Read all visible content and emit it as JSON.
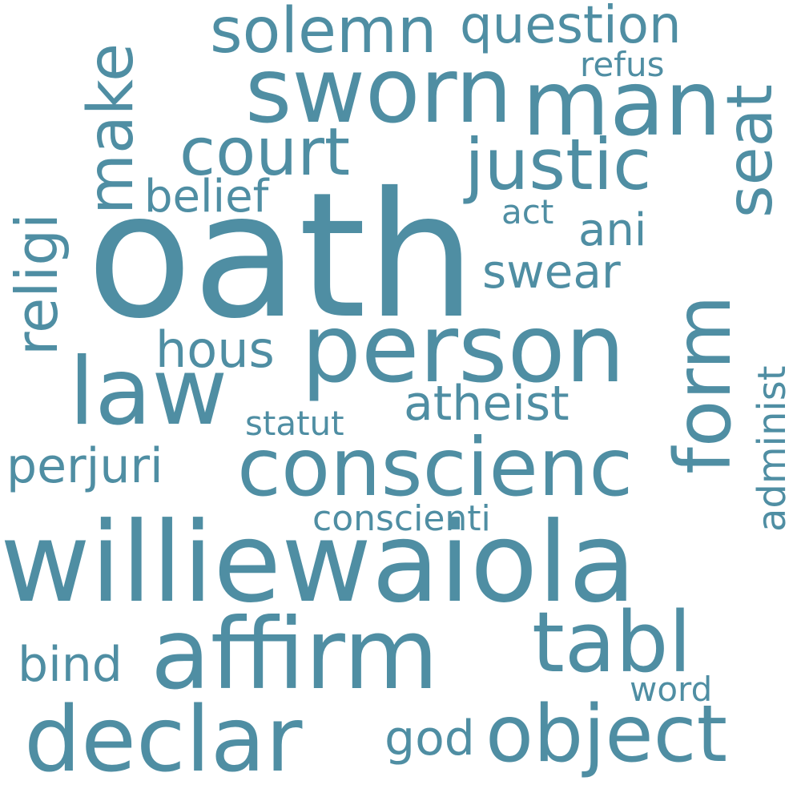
{
  "color": "#4f8ea3",
  "words": [
    {
      "key": "oath",
      "text": "oath"
    },
    {
      "key": "williewaiola",
      "text": "williewaiola"
    },
    {
      "key": "person",
      "text": "person"
    },
    {
      "key": "affirm",
      "text": "affirm"
    },
    {
      "key": "declar",
      "text": "declar"
    },
    {
      "key": "sworn",
      "text": "sworn"
    },
    {
      "key": "man",
      "text": "man"
    },
    {
      "key": "law",
      "text": "law"
    },
    {
      "key": "conscienc",
      "text": "conscienc"
    },
    {
      "key": "object",
      "text": "object"
    },
    {
      "key": "tabl",
      "text": "tabl"
    },
    {
      "key": "form",
      "text": "form"
    },
    {
      "key": "make",
      "text": "make"
    },
    {
      "key": "seat",
      "text": "seat"
    },
    {
      "key": "justic",
      "text": "justic"
    },
    {
      "key": "court",
      "text": "court"
    },
    {
      "key": "solemn",
      "text": "solemn"
    },
    {
      "key": "religi",
      "text": "religi"
    },
    {
      "key": "question",
      "text": "question"
    },
    {
      "key": "atheist",
      "text": "atheist"
    },
    {
      "key": "perjuri",
      "text": "perjuri"
    },
    {
      "key": "hous",
      "text": "hous"
    },
    {
      "key": "swear",
      "text": "swear"
    },
    {
      "key": "belief",
      "text": "belief"
    },
    {
      "key": "bind",
      "text": "bind"
    },
    {
      "key": "god",
      "text": "god"
    },
    {
      "key": "ani",
      "text": "ani"
    },
    {
      "key": "administ",
      "text": "administ"
    },
    {
      "key": "statut",
      "text": "statut"
    },
    {
      "key": "conscienti",
      "text": "conscienti"
    },
    {
      "key": "refus",
      "text": "refus"
    },
    {
      "key": "act",
      "text": "act"
    },
    {
      "key": "word",
      "text": "word"
    }
  ]
}
